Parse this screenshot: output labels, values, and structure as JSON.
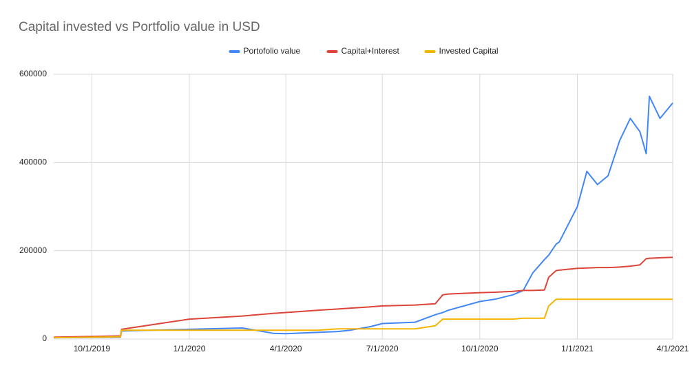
{
  "chart_data": {
    "type": "line",
    "title": "Capital invested vs Portfolio value in USD",
    "x": [
      "8/26/2019",
      "10/28/2019",
      "10/29/2019",
      "1/1/2020",
      "2/20/2020",
      "3/20/2020",
      "4/1/2020",
      "5/1/2020",
      "5/20/2020",
      "6/1/2020",
      "6/20/2020",
      "7/1/2020",
      "8/1/2020",
      "8/20/2020",
      "8/27/2020",
      "9/1/2020",
      "10/1/2020",
      "10/15/2020",
      "11/1/2020",
      "11/11/2020",
      "11/20/2020",
      "12/1/2020",
      "12/5/2020",
      "12/12/2020",
      "12/15/2020",
      "1/1/2021",
      "1/10/2021",
      "1/20/2021",
      "1/30/2021",
      "2/10/2021",
      "2/20/2021",
      "3/1/2021",
      "3/7/2021",
      "3/10/2021",
      "3/20/2021",
      "4/1/2021"
    ],
    "series": [
      {
        "name": "Portofolio value",
        "color": "#4285f4",
        "values": [
          3000,
          4000,
          18000,
          22000,
          25000,
          13000,
          12000,
          15000,
          17000,
          20000,
          28000,
          35000,
          38000,
          55000,
          60000,
          65000,
          85000,
          90000,
          100000,
          110000,
          150000,
          180000,
          190000,
          215000,
          220000,
          300000,
          380000,
          350000,
          370000,
          450000,
          500000,
          470000,
          420000,
          550000,
          500000,
          535000
        ]
      },
      {
        "name": "Capital+Interest",
        "color": "#db4437",
        "values": [
          4000,
          7000,
          22000,
          45000,
          52000,
          58000,
          60000,
          65000,
          68000,
          70000,
          73000,
          75000,
          77000,
          80000,
          100000,
          102000,
          105000,
          106000,
          108000,
          110000,
          110000,
          111000,
          140000,
          155000,
          156000,
          160000,
          161000,
          162000,
          162000,
          163000,
          165000,
          168000,
          182000,
          183000,
          184000,
          185000
        ]
      },
      {
        "name": "Invested Capital",
        "color": "#f4b400",
        "values": [
          3000,
          5000,
          20000,
          20000,
          20000,
          20000,
          20000,
          20000,
          23000,
          23000,
          23000,
          23000,
          23000,
          30000,
          45000,
          45000,
          45000,
          45000,
          45000,
          47000,
          47000,
          47000,
          75000,
          90000,
          90000,
          90000,
          90000,
          90000,
          90000,
          90000,
          90000,
          90000,
          90000,
          90000,
          90000,
          90000
        ]
      }
    ],
    "xlim": [
      "8/26/2019",
      "4/1/2021"
    ],
    "xticks": [
      "10/1/2019",
      "1/1/2020",
      "4/1/2020",
      "7/1/2020",
      "10/1/2020",
      "1/1/2021",
      "4/1/2021"
    ],
    "ylim": [
      0,
      600000
    ],
    "yticks": [
      0,
      200000,
      400000,
      600000
    ],
    "grid": true,
    "legend": "top"
  }
}
